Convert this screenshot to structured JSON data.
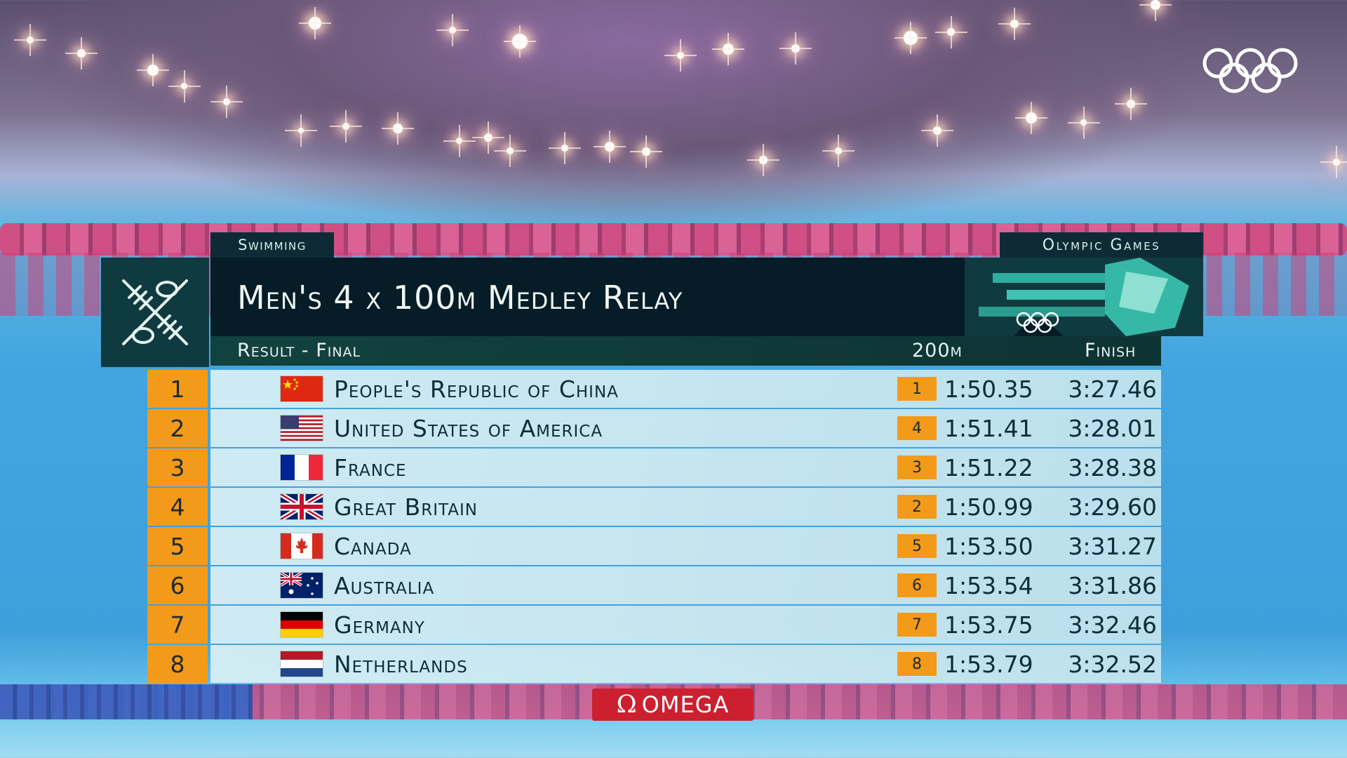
{
  "broadcast": {
    "sport_tag": "Swimming",
    "games_tag": "Olympic Games",
    "event_title": "Men's 4 x 100m Medley Relay",
    "stage": "Result - Final",
    "split_header": "200m",
    "finish_header": "Finish",
    "sponsor": "OMEGA",
    "sponsor_symbol": "Ω"
  },
  "colors": {
    "accent_orange": "#f39a1a",
    "title_bar": "#061c27",
    "subheader_green": "#12423f",
    "omega_red": "#cc1f2f"
  },
  "results": [
    {
      "rank": "1",
      "country": "People's Republic of China",
      "flag": "china-flag",
      "split_rank": "1",
      "split": "1:50.35",
      "finish": "3:27.46"
    },
    {
      "rank": "2",
      "country": "United States of America",
      "flag": "usa-flag",
      "split_rank": "4",
      "split": "1:51.41",
      "finish": "3:28.01"
    },
    {
      "rank": "3",
      "country": "France",
      "flag": "france-flag",
      "split_rank": "3",
      "split": "1:51.22",
      "finish": "3:28.38"
    },
    {
      "rank": "4",
      "country": "Great Britain",
      "flag": "great-britain-flag",
      "split_rank": "2",
      "split": "1:50.99",
      "finish": "3:29.60"
    },
    {
      "rank": "5",
      "country": "Canada",
      "flag": "canada-flag",
      "split_rank": "5",
      "split": "1:53.50",
      "finish": "3:31.27"
    },
    {
      "rank": "6",
      "country": "Australia",
      "flag": "australia-flag",
      "split_rank": "6",
      "split": "1:53.54",
      "finish": "3:31.86"
    },
    {
      "rank": "7",
      "country": "Germany",
      "flag": "germany-flag",
      "split_rank": "7",
      "split": "1:53.75",
      "finish": "3:32.46"
    },
    {
      "rank": "8",
      "country": "Netherlands",
      "flag": "netherlands-flag",
      "split_rank": "8",
      "split": "1:53.79",
      "finish": "3:32.52"
    }
  ]
}
